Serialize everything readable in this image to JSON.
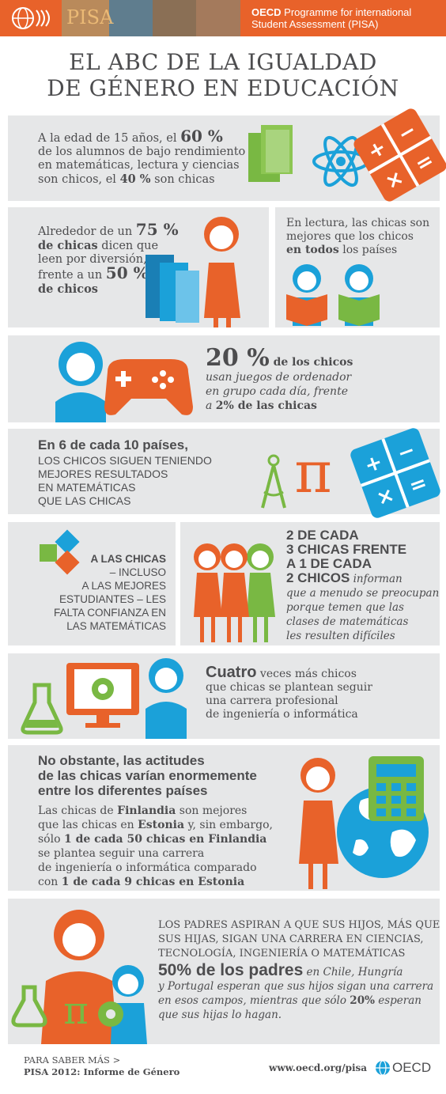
{
  "header": {
    "org_line1": "OECD",
    "org_line1_rest": " Programme for international",
    "org_line2": "Student Assessment (PISA)",
    "logo_text": "PISA"
  },
  "title": {
    "line1": "EL ABC DE LA IGUALDAD",
    "line2": "DE GÉNERO EN EDUCACIÓN"
  },
  "p1": {
    "t1": "A la  edad de 15 años, el ",
    "pct60": "60 %",
    "t2": "de los alumnos de bajo rendimiento",
    "t3": "en matemáticas, lectura y ciencias",
    "t4": "son chicos, el ",
    "pct40": "40 %",
    "t5": " son chicas"
  },
  "p2": {
    "t1": "Alrededor de un ",
    "pct75": "75 %",
    "t2a": "de chicas",
    "t2b": " dicen que",
    "t3": "leen por diversión,",
    "t4": "frente a un ",
    "pct50": "50 %",
    "t5": "de chicos"
  },
  "p3": {
    "t1": "En lectura, las chicas son",
    "t2": "mejores que los chicos",
    "t3a": "en todos",
    "t3b": " los países"
  },
  "p4": {
    "pct20": "20 %",
    "t1": " de los chicos",
    "t2": "usan juegos de ordenador",
    "t3": "en grupo cada día, frente",
    "t4a": "a ",
    "t4b": "2% de las chicas"
  },
  "p5": {
    "t1": "En 6 de cada 10 países,",
    "t2": "LOS CHICOS SIGUEN TENIENDO",
    "t3": "MEJORES RESULTADOS",
    "t4": "EN MATEMÁTICAS",
    "t5": "QUE LAS CHICAS"
  },
  "p6": {
    "t1": "A LAS CHICAS",
    "t2": "– INCLUSO",
    "t3": "A LAS MEJORES",
    "t4": "ESTUDIANTES – LES",
    "t5": "FALTA CONFIANZA EN",
    "t6": "LAS MATEMÁTICAS"
  },
  "p7": {
    "t1": "2 DE CADA",
    "t2": "3 CHICAS FRENTE",
    "t3": "A 1 DE CADA",
    "t4": "2 CHICOS",
    "t4b": " informan",
    "t5": "que a menudo se preocupan",
    "t6": "porque temen que las",
    "t7": "clases de matemáticas",
    "t8": "les resulten difíciles"
  },
  "p8": {
    "t1": "Cuatro",
    "t1b": " veces más chicos",
    "t2": "que chicas se plantean seguir",
    "t3": "una carrera profesional",
    "t4": "de ingeniería o informática"
  },
  "p9": {
    "h1": "No obstante, las actitudes",
    "h2": "de las chicas varían enormemente",
    "h3": "entre los diferentes países",
    "l1a": "Las chicas de ",
    "l1b": "Finlandia",
    "l1c": " son mejores",
    "l2a": "que las chicas en ",
    "l2b": "Estonia",
    "l2c": " y, sin embargo,",
    "l3a": "sólo ",
    "l3b": "1 de cada 50 chicas en Finlandia",
    "l4": "se plantea seguir una carrera",
    "l5": "de ingeniería o informática comparado",
    "l6a": "con ",
    "l6b": "1 de cada 9 chicas en Estonia"
  },
  "p10": {
    "c1": "LOS PADRES ASPIRAN A QUE SUS HIJOS, MÁS QUE",
    "c2": "SUS HIJAS, SIGAN UNA CARRERA EN CIENCIAS,",
    "c3": "TECNOLOGÍA, INGENIERÍA O MATEMÁTICAS",
    "big": "50% de los padres",
    "r1": " en Chile, Hungría",
    "r2": "y Portugal esperan que sus hijos sigan una carrera",
    "r3a": "en esos campos, mientras que sólo ",
    "r3b": "20%",
    "r3c": " esperan",
    "r4": "que sus hijas lo hagan."
  },
  "footer": {
    "more": "PARA SABER MÁS >",
    "report": "PISA 2012: Informe de Género",
    "url": "www.oecd.org/pisa",
    "brand": "OECD"
  },
  "colors": {
    "orange": "#e8622a",
    "blue": "#1ba1d9",
    "green": "#79b843",
    "grey_panel": "#e6e7e8",
    "text": "#4d4d4f"
  }
}
